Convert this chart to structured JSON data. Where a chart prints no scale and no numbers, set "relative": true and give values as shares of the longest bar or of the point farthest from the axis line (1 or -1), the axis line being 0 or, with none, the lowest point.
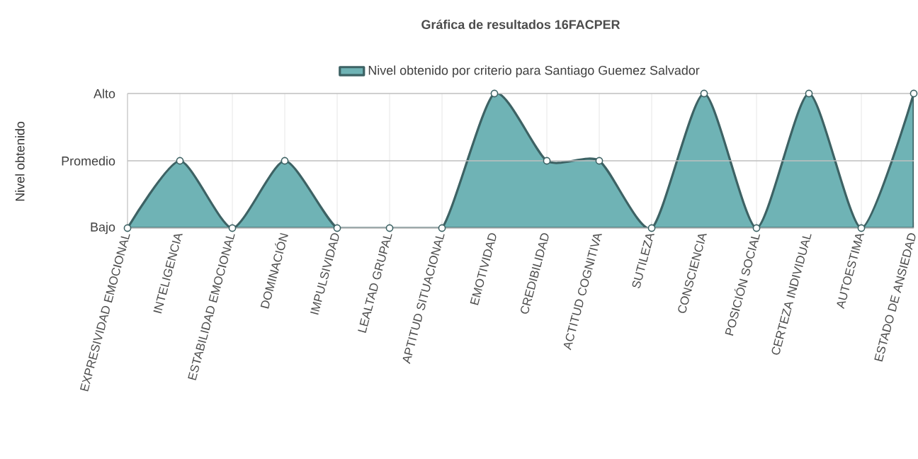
{
  "chart_data": {
    "type": "area",
    "title": "Gráfica de resultados 16FACPER",
    "ylabel": "Nivel obtenido",
    "relative": true,
    "categories": [
      "EXPRESIVIDAD EMOCIONAL",
      "INTELIGENCIA",
      "ESTABILIDAD EMOCIONAL",
      "DOMINACIÓN",
      "IMPULSIVIDAD",
      "LEALTAD GRUPAL",
      "APTITUD SITUACIONAL",
      "EMOTIVIDAD",
      "CREDIBILIDAD",
      "ACTITUD COGNITIVA",
      "SUTILEZA",
      "CONSCIENCIA",
      "POSICIÓN SOCIAL",
      "CERTEZA INDIVIDUAL",
      "AUTOESTIMA",
      "ESTADO DE ANSIEDAD"
    ],
    "series": [
      {
        "name": "Nivel obtenido por criterio para Santiago Guemez Salvador",
        "color": "#6fb3b5",
        "values": [
          0,
          0.5,
          0,
          0.5,
          0,
          0,
          0,
          1,
          0.5,
          0.5,
          0,
          1,
          0,
          1,
          0,
          1
        ]
      }
    ],
    "ref_lines": [
      {
        "axis": "y",
        "value": 0,
        "label": "Bajo",
        "color": "#bfbfbf"
      },
      {
        "axis": "y",
        "value": 0.5,
        "label": "Promedio",
        "color": "#bfbfbf"
      },
      {
        "axis": "y",
        "value": 1,
        "label": "Alto",
        "color": "#bfbfbf"
      }
    ],
    "grid": "x",
    "legend": "top",
    "marker": "circle",
    "line_style": "solid"
  }
}
